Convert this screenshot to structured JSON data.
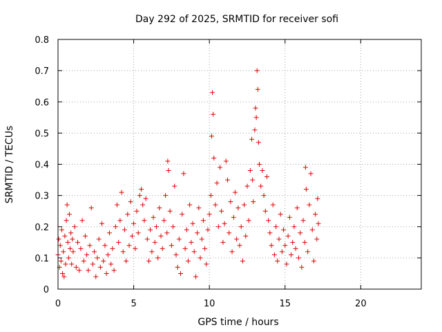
{
  "chart_data": {
    "type": "scatter",
    "title": "Day 292 of 2025, SRMTID for receiver sofi",
    "xlabel": "GPS time / hours",
    "ylabel": "SRMTID / TECUs",
    "xlim": [
      0,
      24
    ],
    "ylim": [
      0,
      0.8
    ],
    "xticks": [
      0,
      5,
      10,
      15,
      20
    ],
    "xtick_labels": [
      "0",
      "5",
      "10",
      "15",
      "20"
    ],
    "yticks": [
      0,
      0.1,
      0.2,
      0.3,
      0.4,
      0.5,
      0.6,
      0.7,
      0.8
    ],
    "ytick_labels": [
      "0",
      "0.1",
      "0.2",
      "0.3",
      "0.4",
      "0.5",
      "0.6",
      "0.7",
      "0.8"
    ],
    "grid": true,
    "marker": "plus",
    "color": "#e00000",
    "series": [
      {
        "name": "sofi",
        "points": [
          [
            0.0,
            0.11
          ],
          [
            0.05,
            0.16
          ],
          [
            0.1,
            0.07
          ],
          [
            0.15,
            0.14
          ],
          [
            0.2,
            0.09
          ],
          [
            0.25,
            0.19
          ],
          [
            0.3,
            0.05
          ],
          [
            0.35,
            0.12
          ],
          [
            0.4,
            0.04
          ],
          [
            0.45,
            0.17
          ],
          [
            0.5,
            0.08
          ],
          [
            0.55,
            0.22
          ],
          [
            0.6,
            0.27
          ],
          [
            0.65,
            0.15
          ],
          [
            0.7,
            0.1
          ],
          [
            0.75,
            0.24
          ],
          [
            0.8,
            0.13
          ],
          [
            0.85,
            0.18
          ],
          [
            0.9,
            0.08
          ],
          [
            0.95,
            0.16
          ],
          [
            1.0,
            0.12
          ],
          [
            1.1,
            0.2
          ],
          [
            1.2,
            0.07
          ],
          [
            1.3,
            0.15
          ],
          [
            1.4,
            0.06
          ],
          [
            1.5,
            0.13
          ],
          [
            1.6,
            0.22
          ],
          [
            1.7,
            0.09
          ],
          [
            1.8,
            0.17
          ],
          [
            1.9,
            0.11
          ],
          [
            2.0,
            0.06
          ],
          [
            2.1,
            0.14
          ],
          [
            2.2,
            0.26
          ],
          [
            2.3,
            0.08
          ],
          [
            2.4,
            0.12
          ],
          [
            2.5,
            0.04
          ],
          [
            2.6,
            0.1
          ],
          [
            2.7,
            0.16
          ],
          [
            2.8,
            0.07
          ],
          [
            2.9,
            0.21
          ],
          [
            3.0,
            0.09
          ],
          [
            3.1,
            0.14
          ],
          [
            3.2,
            0.05
          ],
          [
            3.3,
            0.11
          ],
          [
            3.4,
            0.18
          ],
          [
            3.5,
            0.08
          ],
          [
            3.6,
            0.13
          ],
          [
            3.7,
            0.06
          ],
          [
            3.8,
            0.2
          ],
          [
            3.9,
            0.27
          ],
          [
            4.0,
            0.15
          ],
          [
            4.1,
            0.22
          ],
          [
            4.2,
            0.31
          ],
          [
            4.3,
            0.12
          ],
          [
            4.4,
            0.19
          ],
          [
            4.5,
            0.09
          ],
          [
            4.6,
            0.24
          ],
          [
            4.7,
            0.14
          ],
          [
            4.8,
            0.28
          ],
          [
            4.9,
            0.17
          ],
          [
            5.0,
            0.21
          ],
          [
            5.1,
            0.13
          ],
          [
            5.2,
            0.25
          ],
          [
            5.3,
            0.18
          ],
          [
            5.4,
            0.3
          ],
          [
            5.5,
            0.32
          ],
          [
            5.6,
            0.27
          ],
          [
            5.7,
            0.22
          ],
          [
            5.8,
            0.29
          ],
          [
            5.9,
            0.16
          ],
          [
            6.0,
            0.09
          ],
          [
            6.1,
            0.19
          ],
          [
            6.2,
            0.12
          ],
          [
            6.3,
            0.23
          ],
          [
            6.4,
            0.15
          ],
          [
            6.5,
            0.2
          ],
          [
            6.6,
            0.1
          ],
          [
            6.7,
            0.26
          ],
          [
            6.8,
            0.17
          ],
          [
            6.9,
            0.13
          ],
          [
            7.0,
            0.22
          ],
          [
            7.1,
            0.3
          ],
          [
            7.2,
            0.18
          ],
          [
            7.25,
            0.41
          ],
          [
            7.3,
            0.38
          ],
          [
            7.4,
            0.25
          ],
          [
            7.5,
            0.14
          ],
          [
            7.6,
            0.2
          ],
          [
            7.7,
            0.33
          ],
          [
            7.8,
            0.11
          ],
          [
            7.9,
            0.07
          ],
          [
            8.0,
            0.16
          ],
          [
            8.1,
            0.05
          ],
          [
            8.2,
            0.24
          ],
          [
            8.3,
            0.37
          ],
          [
            8.4,
            0.13
          ],
          [
            8.5,
            0.19
          ],
          [
            8.6,
            0.09
          ],
          [
            8.7,
            0.27
          ],
          [
            8.8,
            0.15
          ],
          [
            8.9,
            0.21
          ],
          [
            9.0,
            0.12
          ],
          [
            9.1,
            0.04
          ],
          [
            9.2,
            0.18
          ],
          [
            9.3,
            0.26
          ],
          [
            9.4,
            0.1
          ],
          [
            9.5,
            0.16
          ],
          [
            9.6,
            0.22
          ],
          [
            9.7,
            0.13
          ],
          [
            9.8,
            0.08
          ],
          [
            9.9,
            0.19
          ],
          [
            10.0,
            0.24
          ],
          [
            10.1,
            0.3
          ],
          [
            10.15,
            0.49
          ],
          [
            10.2,
            0.63
          ],
          [
            10.25,
            0.56
          ],
          [
            10.3,
            0.42
          ],
          [
            10.4,
            0.27
          ],
          [
            10.5,
            0.34
          ],
          [
            10.6,
            0.2
          ],
          [
            10.7,
            0.39
          ],
          [
            10.8,
            0.25
          ],
          [
            10.9,
            0.15
          ],
          [
            11.0,
            0.21
          ],
          [
            11.1,
            0.41
          ],
          [
            11.2,
            0.35
          ],
          [
            11.3,
            0.18
          ],
          [
            11.4,
            0.28
          ],
          [
            11.5,
            0.12
          ],
          [
            11.6,
            0.23
          ],
          [
            11.7,
            0.31
          ],
          [
            11.8,
            0.16
          ],
          [
            11.9,
            0.26
          ],
          [
            12.0,
            0.14
          ],
          [
            12.1,
            0.2
          ],
          [
            12.2,
            0.09
          ],
          [
            12.3,
            0.27
          ],
          [
            12.4,
            0.17
          ],
          [
            12.5,
            0.33
          ],
          [
            12.6,
            0.22
          ],
          [
            12.7,
            0.38
          ],
          [
            12.8,
            0.48
          ],
          [
            12.85,
            0.35
          ],
          [
            12.9,
            0.28
          ],
          [
            13.0,
            0.51
          ],
          [
            13.05,
            0.58
          ],
          [
            13.1,
            0.55
          ],
          [
            13.15,
            0.7
          ],
          [
            13.2,
            0.64
          ],
          [
            13.25,
            0.47
          ],
          [
            13.3,
            0.4
          ],
          [
            13.4,
            0.33
          ],
          [
            13.5,
            0.38
          ],
          [
            13.6,
            0.3
          ],
          [
            13.7,
            0.25
          ],
          [
            13.8,
            0.36
          ],
          [
            13.9,
            0.22
          ],
          [
            14.0,
            0.18
          ],
          [
            14.1,
            0.14
          ],
          [
            14.2,
            0.27
          ],
          [
            14.3,
            0.11
          ],
          [
            14.4,
            0.2
          ],
          [
            14.5,
            0.09
          ],
          [
            14.6,
            0.16
          ],
          [
            14.7,
            0.24
          ],
          [
            14.8,
            0.12
          ],
          [
            14.9,
            0.19
          ],
          [
            15.0,
            0.14
          ],
          [
            15.1,
            0.08
          ],
          [
            15.2,
            0.17
          ],
          [
            15.3,
            0.23
          ],
          [
            15.4,
            0.11
          ],
          [
            15.5,
            0.15
          ],
          [
            15.6,
            0.2
          ],
          [
            15.7,
            0.13
          ],
          [
            15.8,
            0.26
          ],
          [
            15.9,
            0.1
          ],
          [
            16.0,
            0.18
          ],
          [
            16.1,
            0.07
          ],
          [
            16.2,
            0.22
          ],
          [
            16.3,
            0.15
          ],
          [
            16.35,
            0.39
          ],
          [
            16.4,
            0.32
          ],
          [
            16.5,
            0.12
          ],
          [
            16.6,
            0.27
          ],
          [
            16.7,
            0.37
          ],
          [
            16.8,
            0.19
          ],
          [
            16.9,
            0.09
          ],
          [
            17.0,
            0.24
          ],
          [
            17.1,
            0.16
          ],
          [
            17.15,
            0.29
          ],
          [
            17.2,
            0.21
          ]
        ]
      }
    ]
  }
}
